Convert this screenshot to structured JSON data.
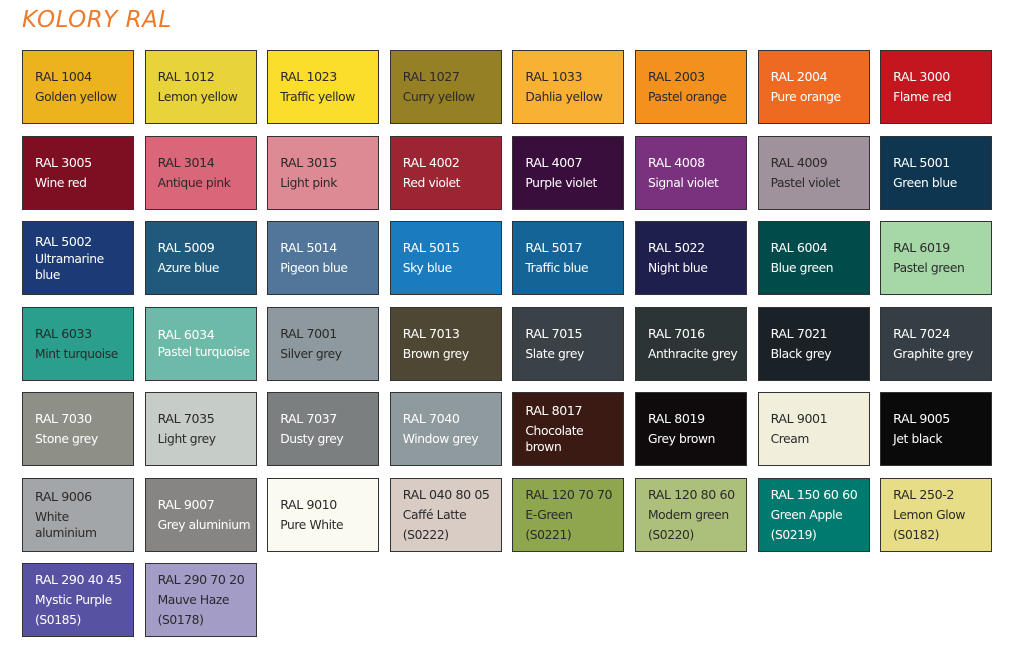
{
  "title": "KOLORY RAL",
  "swatches": [
    {
      "code": "RAL 1004",
      "name": "Golden yellow",
      "color": "#EDB31F",
      "text": "dark"
    },
    {
      "code": "RAL 1012",
      "name": "Lemon yellow",
      "color": "#E8D43A",
      "text": "dark"
    },
    {
      "code": "RAL 1023",
      "name": "Traffic yellow",
      "color": "#FBDD2B",
      "text": "dark"
    },
    {
      "code": "RAL 1027",
      "name": "Curry yellow",
      "color": "#968025",
      "text": "dark"
    },
    {
      "code": "RAL 1033",
      "name": "Dahlia yellow",
      "color": "#F8B132",
      "text": "dark"
    },
    {
      "code": "RAL 2003",
      "name": "Pastel orange",
      "color": "#F3911F",
      "text": "dark"
    },
    {
      "code": "RAL 2004",
      "name": "Pure orange",
      "color": "#EE6A22",
      "text": "light"
    },
    {
      "code": "RAL 3000",
      "name": "Flame red",
      "color": "#C3161E",
      "text": "light"
    },
    {
      "code": "RAL 3005",
      "name": "Wine red",
      "color": "#7E0E22",
      "text": "light"
    },
    {
      "code": "RAL 3014",
      "name": "Antique pink",
      "color": "#D96779",
      "text": "dark"
    },
    {
      "code": "RAL 3015",
      "name": "Light pink",
      "color": "#DE8A94",
      "text": "dark"
    },
    {
      "code": "RAL 4002",
      "name": "Red violet",
      "color": "#9C2534",
      "text": "light"
    },
    {
      "code": "RAL 4007",
      "name": "Purple violet",
      "color": "#3A0E3C",
      "text": "light"
    },
    {
      "code": "RAL 4008",
      "name": "Signal violet",
      "color": "#7A327E",
      "text": "light"
    },
    {
      "code": "RAL 4009",
      "name": "Pastel violet",
      "color": "#A0929C",
      "text": "dark"
    },
    {
      "code": "RAL 5001",
      "name": "Green blue",
      "color": "#0E3650",
      "text": "light"
    },
    {
      "code": "RAL 5002",
      "name": "Ultramarine blue",
      "color": "#1C3B76",
      "text": "light"
    },
    {
      "code": "RAL 5009",
      "name": "Azure blue",
      "color": "#1F5A7D",
      "text": "light"
    },
    {
      "code": "RAL 5014",
      "name": "Pigeon blue",
      "color": "#51769A",
      "text": "light"
    },
    {
      "code": "RAL 5015",
      "name": "Sky blue",
      "color": "#1A7BBF",
      "text": "light"
    },
    {
      "code": "RAL 5017",
      "name": "Traffic blue",
      "color": "#146497",
      "text": "light"
    },
    {
      "code": "RAL 5022",
      "name": "Night blue",
      "color": "#1F1F4D",
      "text": "light"
    },
    {
      "code": "RAL 6004",
      "name": "Blue green",
      "color": "#014C4A",
      "text": "light"
    },
    {
      "code": "RAL 6019",
      "name": "Pastel green",
      "color": "#A6D7A7",
      "text": "dark"
    },
    {
      "code": "RAL 6033",
      "name": "Mint turquoise",
      "color": "#2A9F8E",
      "text": "dark"
    },
    {
      "code": "RAL 6034",
      "name": "Pastel turquoise",
      "color": "#6CBAA7",
      "text": "light"
    },
    {
      "code": "RAL 7001",
      "name": "Silver grey",
      "color": "#8E999F",
      "text": "dark"
    },
    {
      "code": "RAL 7013",
      "name": "Brown grey",
      "color": "#4E4733",
      "text": "light"
    },
    {
      "code": "RAL 7015",
      "name": "Slate grey",
      "color": "#3A4248",
      "text": "light"
    },
    {
      "code": "RAL 7016",
      "name": "Anthracite grey",
      "color": "#2D3436",
      "text": "light"
    },
    {
      "code": "RAL 7021",
      "name": "Black grey",
      "color": "#1A2227",
      "text": "light"
    },
    {
      "code": "RAL 7024",
      "name": "Graphite grey",
      "color": "#353E44",
      "text": "light"
    },
    {
      "code": "RAL 7030",
      "name": "Stone grey",
      "color": "#8E8F86",
      "text": "light"
    },
    {
      "code": "RAL 7035",
      "name": "Light grey",
      "color": "#C6CCC7",
      "text": "dark"
    },
    {
      "code": "RAL 7037",
      "name": "Dusty grey",
      "color": "#7B7F80",
      "text": "light"
    },
    {
      "code": "RAL 7040",
      "name": "Window grey",
      "color": "#8F9A9F",
      "text": "light"
    },
    {
      "code": "RAL 8017",
      "name": "Chocolate brown",
      "color": "#3A1A12",
      "text": "light"
    },
    {
      "code": "RAL 8019",
      "name": "Grey brown",
      "color": "#0F0A0C",
      "text": "light"
    },
    {
      "code": "RAL 9001",
      "name": "Cream",
      "color": "#F2EEDC",
      "text": "dark"
    },
    {
      "code": "RAL 9005",
      "name": "Jet black",
      "color": "#0A0A0A",
      "text": "light"
    },
    {
      "code": "RAL 9006",
      "name": "White aluminium",
      "color": "#A3A6A8",
      "text": "dark"
    },
    {
      "code": "RAL 9007",
      "name": "Grey aluminium",
      "color": "#868584",
      "text": "light"
    },
    {
      "code": "RAL 9010",
      "name": "Pure White",
      "color": "#FBFAF0",
      "text": "dark"
    },
    {
      "code": "RAL 040 80 05",
      "name": "Caffé Latte",
      "extra": "(S0222)",
      "color": "#D9CCC5",
      "text": "dark"
    },
    {
      "code": "RAL 120 70 70",
      "name": "E-Green",
      "extra": "(S0221)",
      "color": "#8EA64E",
      "text": "dark"
    },
    {
      "code": "RAL 120 80 60",
      "name": "Modern green",
      "extra": "(S0220)",
      "color": "#ADC07B",
      "text": "dark"
    },
    {
      "code": "RAL 150 60 60",
      "name": "Green Apple",
      "extra": "(S0219)",
      "color": "#007A6E",
      "text": "light"
    },
    {
      "code": "RAL 250-2",
      "name": "Lemon Glow",
      "extra": "(S0182)",
      "color": "#E6DD86",
      "text": "dark"
    },
    {
      "code": "RAL 290 40 45",
      "name": "Mystic Purple",
      "extra": "(S0185)",
      "color": "#5852A2",
      "text": "light"
    },
    {
      "code": "RAL 290 70 20",
      "name": "Mauve Haze",
      "extra": "(S0178)",
      "color": "#A29CC6",
      "text": "dark"
    }
  ]
}
